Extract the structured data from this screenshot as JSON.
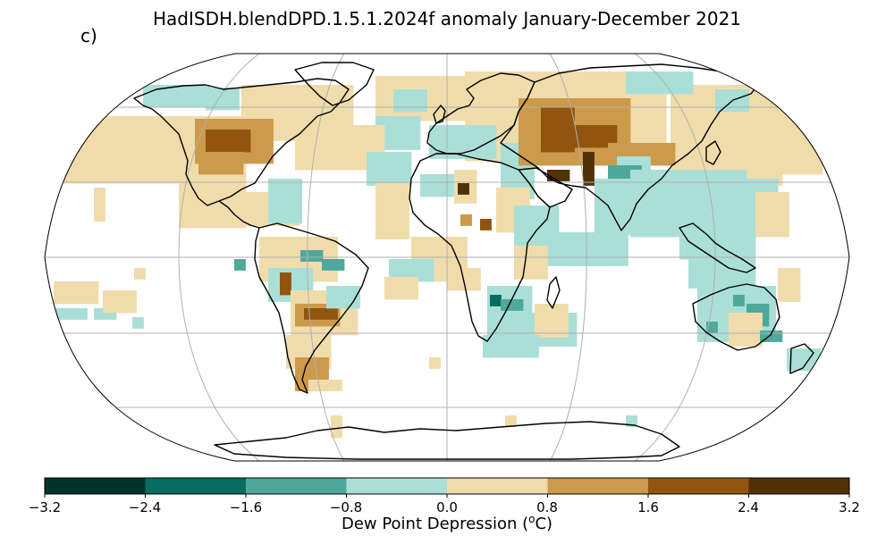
{
  "title": "HadISDH.blendDPD.1.5.1.2024f anomaly January-December 2021",
  "panel_label": "c)",
  "colorbar": {
    "label_prefix": "Dew Point Depression (",
    "label_sup": "o",
    "label_suffix": "C)",
    "ticks": [
      "−3.2",
      "−2.4",
      "−1.6",
      "−0.8",
      "0.0",
      "0.8",
      "1.6",
      "2.4",
      "3.2"
    ],
    "bins": [
      {
        "range": [
          -3.2,
          -2.4
        ],
        "color": "#01342e"
      },
      {
        "range": [
          -2.4,
          -1.6
        ],
        "color": "#076c62"
      },
      {
        "range": [
          -1.6,
          -0.8
        ],
        "color": "#4fa89c"
      },
      {
        "range": [
          -0.8,
          0.0
        ],
        "color": "#aadfd7"
      },
      {
        "range": [
          0.0,
          0.8
        ],
        "color": "#f0dcab"
      },
      {
        "range": [
          0.8,
          1.6
        ],
        "color": "#cc9a4b"
      },
      {
        "range": [
          1.6,
          2.4
        ],
        "color": "#91550f"
      },
      {
        "range": [
          2.4,
          3.2
        ],
        "color": "#523107"
      }
    ]
  },
  "map": {
    "projection": "Robinson",
    "graticule": true,
    "coastlines": true
  }
}
